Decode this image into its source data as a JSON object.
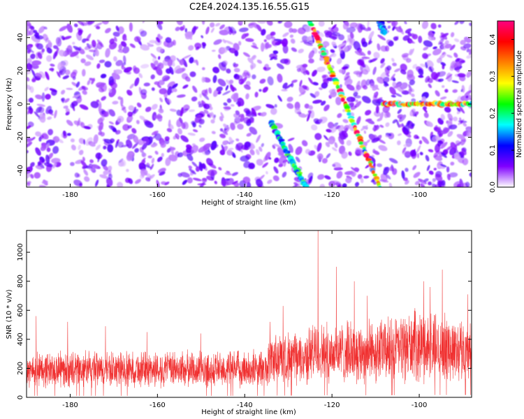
{
  "figure_title": "C2E4.2024.135.16.55.G15",
  "chart_data": [
    {
      "type": "heatmap",
      "xlabel": "Height of straight line (km)",
      "ylabel": "Frequency (Hz)",
      "xlim": [
        -190,
        -88
      ],
      "ylim": [
        -50,
        50
      ],
      "x_ticks": [
        -180,
        -160,
        -140,
        -120,
        -100
      ],
      "y_ticks": [
        -40,
        -20,
        0,
        20,
        40
      ],
      "colorbar": {
        "label": "Normalized spectral amplitude",
        "range": [
          0,
          0.45
        ],
        "ticks": [
          0.0,
          0.1,
          0.2,
          0.3,
          0.4
        ],
        "colors": [
          "#ffffff",
          "#8000ff",
          "#0000ff",
          "#00ffff",
          "#00ff00",
          "#ffff00",
          "#ff8000",
          "#ff0000",
          "#ff0080"
        ]
      },
      "background_blob_amplitude": 0.07,
      "features": [
        {
          "name": "track-a",
          "from": [
            -134,
            -11
          ],
          "to": [
            -126,
            -50
          ],
          "peak_amplitude": 0.25
        },
        {
          "name": "track-b",
          "from": [
            -125,
            50
          ],
          "to": [
            -109,
            -50
          ],
          "peak_amplitude": 0.45
        },
        {
          "name": "track-c",
          "from": [
            -109,
            50
          ],
          "to": [
            -108,
            43
          ],
          "peak_amplitude": 0.2
        },
        {
          "name": "tone-zero",
          "from": [
            -108,
            0
          ],
          "to": [
            -88,
            0
          ],
          "peak_amplitude": 0.45
        }
      ]
    },
    {
      "type": "line",
      "xlabel": "Height of straight line (km)",
      "ylabel": "SNR (10 * v/v)",
      "xlim": [
        -190,
        -88
      ],
      "ylim": [
        0,
        1150
      ],
      "x_ticks": [
        -180,
        -160,
        -140,
        -120,
        -100
      ],
      "y_ticks": [
        0,
        200,
        400,
        600,
        800,
        1000
      ],
      "series_color": "#f03030",
      "envelope": [
        {
          "x": -190,
          "lower": 50,
          "upper": 330
        },
        {
          "x": -135,
          "lower": 50,
          "upper": 340
        },
        {
          "x": -134,
          "lower": 60,
          "upper": 480
        },
        {
          "x": -126,
          "lower": 60,
          "upper": 470
        },
        {
          "x": -125,
          "lower": 70,
          "upper": 540
        },
        {
          "x": -110,
          "lower": 70,
          "upper": 560
        },
        {
          "x": -100,
          "lower": 80,
          "upper": 640
        },
        {
          "x": -88,
          "lower": 80,
          "upper": 560
        }
      ],
      "spikes": [
        {
          "x": -187.8,
          "y": 560
        },
        {
          "x": -180.6,
          "y": 520
        },
        {
          "x": -171.9,
          "y": 490
        },
        {
          "x": -162.4,
          "y": 450
        },
        {
          "x": -150.1,
          "y": 440
        },
        {
          "x": -134.2,
          "y": 520
        },
        {
          "x": -131.2,
          "y": 630
        },
        {
          "x": -123.2,
          "y": 1150
        },
        {
          "x": -119.0,
          "y": 900
        },
        {
          "x": -114.9,
          "y": 800
        },
        {
          "x": -111.9,
          "y": 700
        },
        {
          "x": -99.0,
          "y": 800
        },
        {
          "x": -97.5,
          "y": 760
        },
        {
          "x": -94.7,
          "y": 880
        },
        {
          "x": -88.9,
          "y": 710
        }
      ]
    }
  ]
}
